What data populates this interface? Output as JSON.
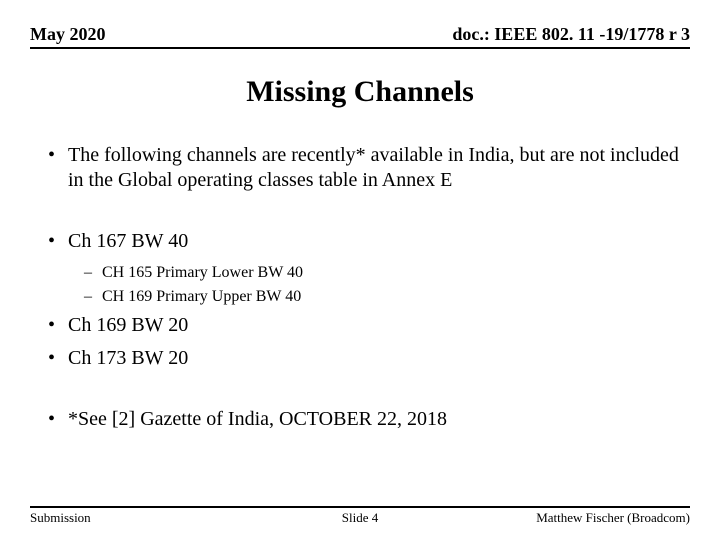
{
  "header": {
    "date": "May 2020",
    "doc": "doc.: IEEE 802. 11 -19/1778 r 3"
  },
  "title": "Missing Channels",
  "bullets": {
    "b1": "The following channels are recently* available in India, but are not included in the Global operating classes table in Annex E",
    "b2": "Ch 167 BW 40",
    "b2a": "CH 165 Primary Lower BW 40",
    "b2b": "CH 169 Primary Upper BW 40",
    "b3": "Ch 169 BW 20",
    "b4": "Ch 173 BW 20",
    "b5": " *See [2] Gazette of India, OCTOBER 22, 2018"
  },
  "footer": {
    "left": "Submission",
    "center": "Slide 4",
    "right": "Matthew Fischer (Broadcom)"
  },
  "colors": {
    "text": "#000000",
    "background": "#ffffff",
    "rule": "#000000"
  },
  "typography": {
    "family": "Times New Roman",
    "header_size_pt": 18,
    "title_size_pt": 30,
    "bullet_l1_size_pt": 20,
    "bullet_l2_size_pt": 16,
    "footer_size_pt": 13
  }
}
